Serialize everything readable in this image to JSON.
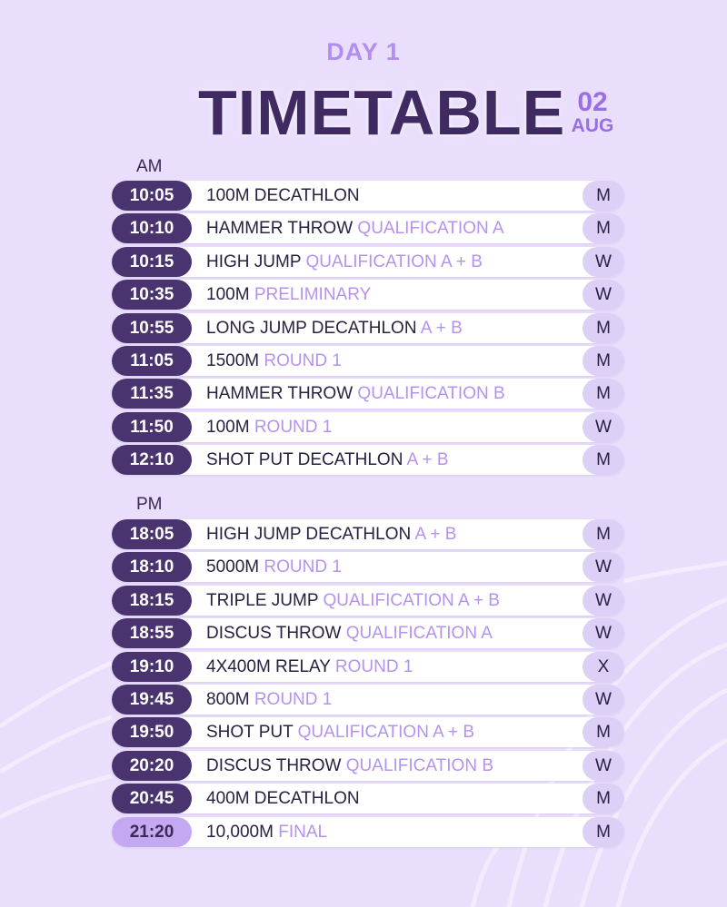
{
  "header": {
    "day_label": "DAY 1",
    "title": "TIMETABLE",
    "date_day": "02",
    "date_month": "AUG"
  },
  "colors": {
    "background": "#e9defc",
    "accent": "#b28ef0",
    "title": "#3f2b62",
    "time_pill": "#4a3470",
    "time_pill_highlight": "#c4a8f2",
    "gender_pill": "#ddd0f7"
  },
  "am": {
    "label": "AM",
    "rows": [
      {
        "time": "10:05",
        "event": "100M DECATHLON",
        "detail": "",
        "gender": "M"
      },
      {
        "time": "10:10",
        "event": "HAMMER THROW",
        "detail": "QUALIFICATION A",
        "gender": "M"
      },
      {
        "time": "10:15",
        "event": "HIGH JUMP",
        "detail": "QUALIFICATION A + B",
        "gender": "W"
      },
      {
        "time": "10:35",
        "event": "100M",
        "detail": "PRELIMINARY",
        "gender": "W"
      },
      {
        "time": "10:55",
        "event": "LONG JUMP DECATHLON",
        "detail": "A + B",
        "gender": "M"
      },
      {
        "time": "11:05",
        "event": "1500M",
        "detail": "ROUND 1",
        "gender": "M"
      },
      {
        "time": "11:35",
        "event": "HAMMER THROW",
        "detail": "QUALIFICATION B",
        "gender": "M"
      },
      {
        "time": "11:50",
        "event": "100M",
        "detail": "ROUND 1",
        "gender": "W"
      },
      {
        "time": "12:10",
        "event": "SHOT PUT DECATHLON",
        "detail": "A + B",
        "gender": "M"
      }
    ]
  },
  "pm": {
    "label": "PM",
    "rows": [
      {
        "time": "18:05",
        "event": "HIGH JUMP DECATHLON",
        "detail": "A + B",
        "gender": "M"
      },
      {
        "time": "18:10",
        "event": "5000M",
        "detail": "ROUND 1",
        "gender": "W"
      },
      {
        "time": "18:15",
        "event": "TRIPLE JUMP",
        "detail": "QUALIFICATION A + B",
        "gender": "W"
      },
      {
        "time": "18:55",
        "event": "DISCUS THROW",
        "detail": "QUALIFICATION A",
        "gender": "W"
      },
      {
        "time": "19:10",
        "event": "4X400M RELAY",
        "detail": "ROUND 1",
        "gender": "X"
      },
      {
        "time": "19:45",
        "event": "800M",
        "detail": "ROUND 1",
        "gender": "W"
      },
      {
        "time": "19:50",
        "event": "SHOT PUT",
        "detail": "QUALIFICATION A + B",
        "gender": "M"
      },
      {
        "time": "20:20",
        "event": "DISCUS THROW",
        "detail": "QUALIFICATION B",
        "gender": "W"
      },
      {
        "time": "20:45",
        "event": "400M DECATHLON",
        "detail": "",
        "gender": "M"
      },
      {
        "time": "21:20",
        "event": "10,000M",
        "detail": "FINAL",
        "gender": "M",
        "highlight": true
      }
    ]
  }
}
